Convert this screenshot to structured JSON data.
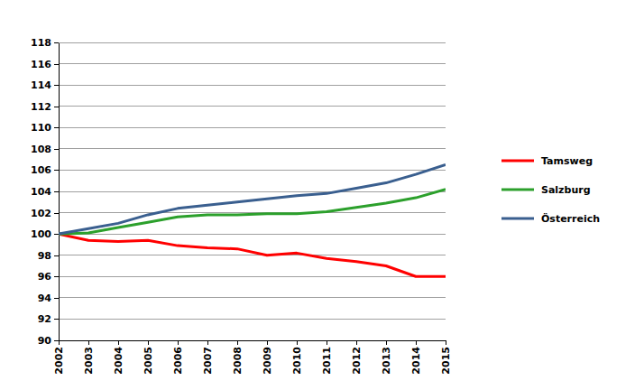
{
  "chart_data": {
    "type": "line",
    "x": [
      2002,
      2003,
      2004,
      2005,
      2006,
      2007,
      2008,
      2009,
      2010,
      2011,
      2012,
      2013,
      2014,
      2015
    ],
    "series": [
      {
        "name": "Tamsweg",
        "color": "#ff0000",
        "values": [
          100,
          99.4,
          99.3,
          99.4,
          98.9,
          98.7,
          98.6,
          98.0,
          98.2,
          97.7,
          97.4,
          97.0,
          96.0,
          96.0
        ]
      },
      {
        "name": "Salzburg",
        "color": "#2ca02c",
        "values": [
          100,
          100.1,
          100.6,
          101.1,
          101.6,
          101.8,
          101.8,
          101.9,
          101.9,
          102.1,
          102.5,
          102.9,
          103.4,
          104.2
        ]
      },
      {
        "name": "Österreich",
        "color": "#3a5f8f",
        "values": [
          100,
          100.5,
          101.0,
          101.8,
          102.4,
          102.7,
          103.0,
          103.3,
          103.6,
          103.8,
          104.3,
          104.8,
          105.6,
          106.5
        ]
      }
    ],
    "xlim": [
      2002,
      2015
    ],
    "xticks": [
      2002,
      2003,
      2004,
      2005,
      2006,
      2007,
      2008,
      2009,
      2010,
      2011,
      2012,
      2013,
      2014,
      2015
    ],
    "ylim": [
      90,
      118
    ],
    "yticks": [
      90,
      92,
      94,
      96,
      98,
      100,
      102,
      104,
      106,
      108,
      110,
      112,
      114,
      116,
      118
    ],
    "grid": true,
    "legend": "right"
  }
}
